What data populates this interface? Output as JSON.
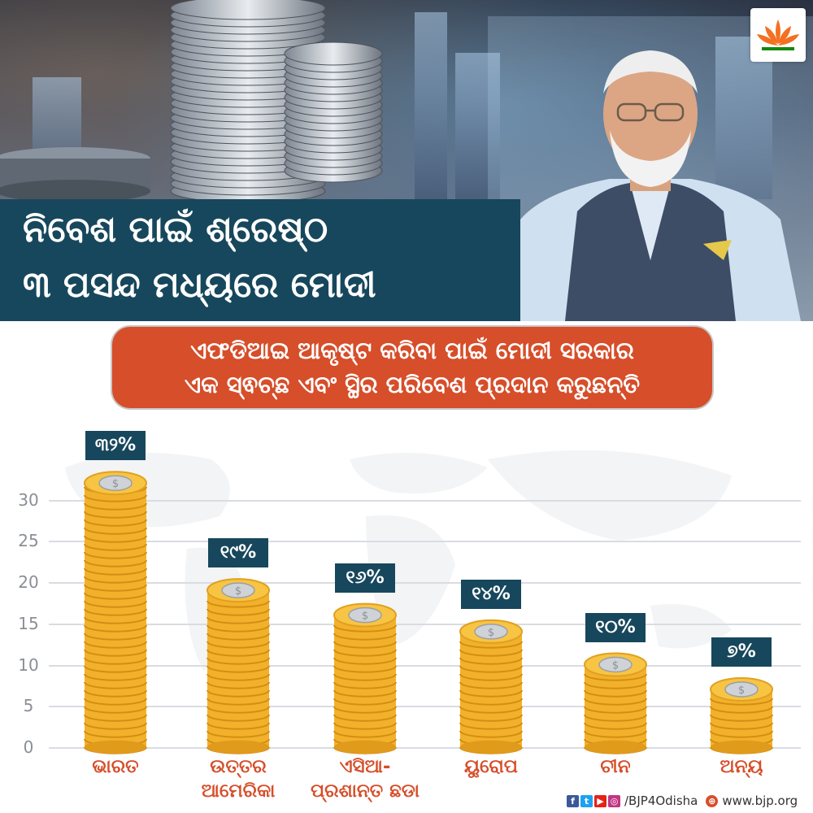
{
  "header": {
    "title_line1": "ନିବେଶ ପାଇଁ ଶ୍ରେଷ୍ଠ",
    "title_line2": "୩ ପସନ୍ଦ ମଧ୍ୟରେ ମୋଦୀ"
  },
  "subtitle": {
    "line1": "ଏଫଡିଆଇ ଆକୃଷ୍ଟ କରିବା ପାଇଁ ମୋଦୀ ସରକାର",
    "line2": "ଏକ ସ୍ଵଚ୍ଛ ଏବଂ ସ୍ଥିର ପରିବେଶ ପ୍ରଦାନ କରୁଛନ୍ତି"
  },
  "colors": {
    "navy": "#17475c",
    "accent": "#d64e2a",
    "coin_gold": "#f2b12a"
  },
  "chart_data": {
    "type": "bar",
    "categories": [
      [
        "ଭାରତ"
      ],
      [
        "ଉତ୍ତର",
        "ଆମେରିକା"
      ],
      [
        "ଏସିଆ-",
        "ପ୍ରଶାନ୍ତ ଛଡା"
      ],
      [
        "ୟୁରୋପ"
      ],
      [
        "ଚୀନ"
      ],
      [
        "ଅନ୍ୟ"
      ]
    ],
    "values": [
      32,
      19,
      16,
      14,
      10,
      7
    ],
    "data_labels": [
      "୩୨%",
      "୧୯%",
      "୧୬%",
      "୧୪%",
      "୧୦%",
      "୭%"
    ],
    "y_ticks": [
      "0",
      "5",
      "10",
      "15",
      "20",
      "25",
      "30"
    ],
    "ylim": [
      0,
      30
    ],
    "grid": true,
    "bar_style": "coin-stacks"
  },
  "footer": {
    "handle": "/BJP4Odisha",
    "website": "www.bjp.org",
    "social_icons": [
      "facebook-icon",
      "twitter-icon",
      "youtube-icon",
      "instagram-icon"
    ]
  },
  "logo": {
    "icon": "lotus-icon"
  }
}
